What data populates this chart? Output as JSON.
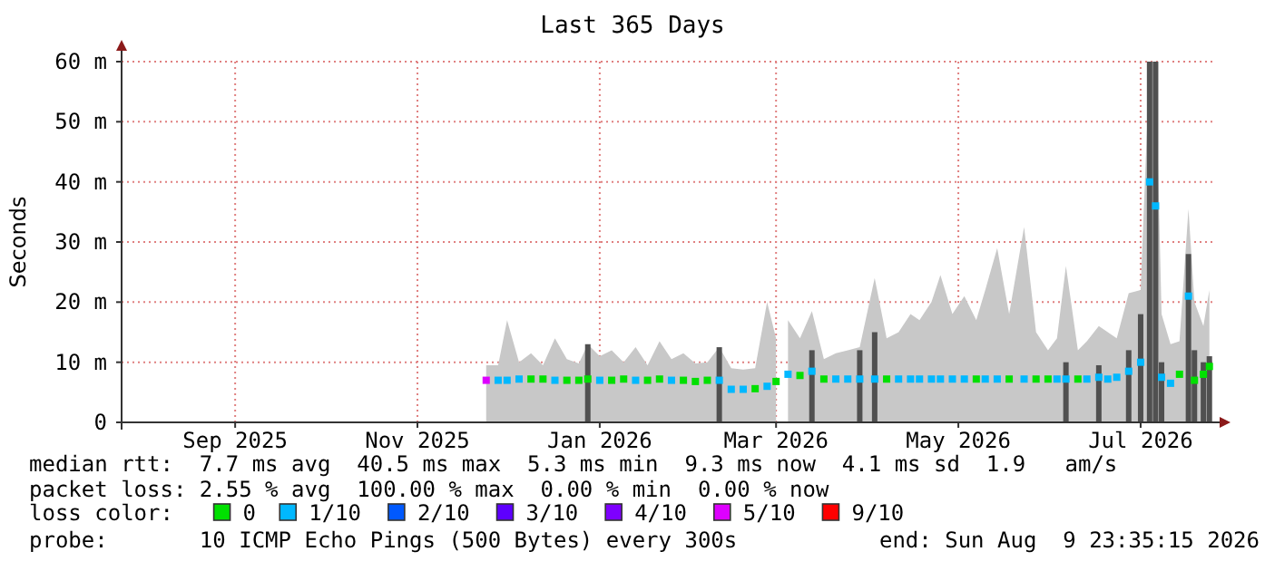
{
  "chart_data": {
    "type": "scatter",
    "title": "Last 365 Days",
    "ylabel": "Seconds",
    "xlim": [
      "2025-08-09",
      "2026-08-09"
    ],
    "xticks": [
      {
        "value": "2025-09-16",
        "label": "Sep 2025"
      },
      {
        "value": "2025-11-16",
        "label": "Nov 2025"
      },
      {
        "value": "2026-01-16",
        "label": "Jan 2026"
      },
      {
        "value": "2026-03-16",
        "label": "Mar 2026"
      },
      {
        "value": "2026-05-16",
        "label": "May 2026"
      },
      {
        "value": "2026-07-16",
        "label": "Jul 2026"
      }
    ],
    "ylim": [
      0,
      60
    ],
    "yticks": [
      0,
      {
        "value": 10,
        "label": "10 m"
      },
      {
        "value": 20,
        "label": "20 m"
      },
      {
        "value": 30,
        "label": "30 m"
      },
      {
        "value": 40,
        "label": "40 m"
      },
      {
        "value": 50,
        "label": "50 m"
      },
      {
        "value": 60,
        "label": "60 m"
      }
    ],
    "grid": true,
    "legend": "bottom",
    "legend_title": "loss color:",
    "x": [
      "2025-12-09",
      "2025-12-13",
      "2025-12-16",
      "2025-12-20",
      "2025-12-24",
      "2025-12-28",
      "2026-01-01",
      "2026-01-05",
      "2026-01-09",
      "2026-01-12",
      "2026-01-16",
      "2026-01-20",
      "2026-01-24",
      "2026-01-28",
      "2026-02-01",
      "2026-02-05",
      "2026-02-09",
      "2026-02-13",
      "2026-02-17",
      "2026-02-21",
      "2026-02-25",
      "2026-03-01",
      "2026-03-05",
      "2026-03-09",
      "2026-03-13",
      "2026-03-16",
      "2026-03-18",
      "2026-03-20",
      "2026-03-24",
      "2026-03-28",
      "2026-04-01",
      "2026-04-05",
      "2026-04-09",
      "2026-04-13",
      "2026-04-18",
      "2026-04-22",
      "2026-04-26",
      "2026-04-30",
      "2026-05-03",
      "2026-05-07",
      "2026-05-10",
      "2026-05-14",
      "2026-05-18",
      "2026-05-22",
      "2026-05-25",
      "2026-05-29",
      "2026-06-02",
      "2026-06-07",
      "2026-06-11",
      "2026-06-15",
      "2026-06-18",
      "2026-06-21",
      "2026-06-25",
      "2026-06-28",
      "2026-07-02",
      "2026-07-05",
      "2026-07-08",
      "2026-07-12",
      "2026-07-16",
      "2026-07-19",
      "2026-07-21",
      "2026-07-23",
      "2026-07-26",
      "2026-07-29",
      "2026-08-01",
      "2026-08-03",
      "2026-08-06",
      "2026-08-08"
    ],
    "series": [
      {
        "type": "area",
        "color": "#c8c8c8",
        "values": [
          9.5,
          9.5,
          17,
          10,
          11.5,
          9.5,
          14,
          10.5,
          9.8,
          13,
          11,
          12,
          10,
          12.5,
          9.5,
          13.5,
          10.5,
          11.5,
          9.8,
          10,
          12.5,
          9,
          8.8,
          9,
          20,
          14,
          null,
          17,
          14,
          18.5,
          10.5,
          11.5,
          12,
          12.5,
          24,
          14,
          15,
          18,
          17,
          20,
          24.5,
          18,
          21,
          17,
          22,
          29,
          18,
          32.5,
          15,
          12,
          14,
          26,
          12,
          13.5,
          16,
          15,
          14,
          21.5,
          22,
          60,
          60,
          18,
          13,
          13.5,
          35.5,
          20,
          16,
          22
        ]
      },
      {
        "type": "bar",
        "color": "#505050",
        "values": [
          null,
          null,
          null,
          null,
          null,
          null,
          null,
          null,
          null,
          13,
          null,
          null,
          null,
          null,
          null,
          null,
          null,
          null,
          null,
          null,
          12.5,
          null,
          null,
          null,
          null,
          null,
          null,
          null,
          null,
          12,
          null,
          null,
          null,
          12,
          15,
          null,
          null,
          null,
          null,
          null,
          null,
          null,
          null,
          null,
          null,
          null,
          null,
          null,
          null,
          null,
          null,
          10,
          null,
          null,
          9.5,
          null,
          null,
          12,
          18,
          60,
          60,
          10,
          null,
          null,
          28,
          12,
          10,
          11
        ]
      },
      {
        "name": "0",
        "color": "#00e000",
        "marker": "square",
        "values": [
          null,
          null,
          null,
          null,
          7.2,
          7.2,
          null,
          7,
          7,
          7.2,
          null,
          7,
          7.2,
          null,
          7,
          7.2,
          null,
          7,
          6.8,
          7,
          null,
          null,
          null,
          5.6,
          null,
          6.8,
          null,
          null,
          7.8,
          null,
          7.2,
          null,
          null,
          null,
          null,
          7.2,
          null,
          null,
          null,
          null,
          null,
          null,
          null,
          7.2,
          null,
          null,
          7.2,
          null,
          7.2,
          7.2,
          null,
          null,
          7.2,
          null,
          null,
          null,
          null,
          null,
          null,
          null,
          null,
          null,
          null,
          8,
          null,
          7,
          8,
          9.3
        ]
      },
      {
        "name": "1/10",
        "color": "#00b8ff",
        "marker": "square",
        "values": [
          null,
          7,
          7,
          7.2,
          null,
          null,
          7,
          null,
          null,
          null,
          7,
          null,
          null,
          7,
          null,
          null,
          7,
          null,
          null,
          null,
          7,
          5.5,
          5.5,
          null,
          6,
          null,
          null,
          8,
          null,
          8.5,
          null,
          7.2,
          7.2,
          7.2,
          7.2,
          null,
          7.2,
          7.2,
          7.2,
          7.2,
          7.2,
          7.2,
          7.2,
          null,
          7.2,
          7.2,
          null,
          7.2,
          null,
          null,
          7.2,
          7.2,
          null,
          7.2,
          7.5,
          7.2,
          7.5,
          8.5,
          10,
          40,
          36,
          7.5,
          6.5,
          null,
          21,
          null,
          null,
          null
        ]
      },
      {
        "name": "2/10",
        "color": "#0059ff",
        "values": [
          null,
          null,
          null,
          null,
          null,
          null,
          null,
          null,
          null,
          null,
          null,
          null,
          null,
          null,
          null,
          null,
          null,
          null,
          null,
          null,
          null,
          null,
          null,
          null,
          null,
          null,
          null,
          null,
          null,
          null,
          null,
          null,
          null,
          null,
          null,
          null,
          null,
          null,
          null,
          null,
          null,
          null,
          null,
          null,
          null,
          null,
          null,
          null,
          null,
          null,
          null,
          null,
          null,
          null,
          null,
          null,
          null,
          null,
          null,
          null,
          null,
          null,
          null,
          null,
          null,
          null,
          null,
          null
        ]
      },
      {
        "name": "3/10",
        "color": "#5e00ff",
        "values": [
          null,
          null,
          null,
          null,
          null,
          null,
          null,
          null,
          null,
          null,
          null,
          null,
          null,
          null,
          null,
          null,
          null,
          null,
          null,
          null,
          null,
          null,
          null,
          null,
          null,
          null,
          null,
          null,
          null,
          null,
          null,
          null,
          null,
          null,
          null,
          null,
          null,
          null,
          null,
          null,
          null,
          null,
          null,
          null,
          null,
          null,
          null,
          null,
          null,
          null,
          null,
          null,
          null,
          null,
          null,
          null,
          null,
          null,
          null,
          null,
          null,
          null,
          null,
          null,
          null,
          null,
          null,
          null
        ]
      },
      {
        "name": "4/10",
        "color": "#7e00ff",
        "values": [
          null,
          null,
          null,
          null,
          null,
          null,
          null,
          null,
          null,
          null,
          null,
          null,
          null,
          null,
          null,
          null,
          null,
          null,
          null,
          null,
          null,
          null,
          null,
          null,
          null,
          null,
          null,
          null,
          null,
          null,
          null,
          null,
          null,
          null,
          null,
          null,
          null,
          null,
          null,
          null,
          null,
          null,
          null,
          null,
          null,
          null,
          null,
          null,
          null,
          null,
          null,
          null,
          null,
          null,
          null,
          null,
          null,
          null,
          null,
          null,
          null,
          null,
          null,
          null,
          null,
          null,
          null,
          null
        ]
      },
      {
        "name": "5/10",
        "color": "#dd00ff",
        "marker": "square",
        "values": [
          7,
          null,
          null,
          null,
          null,
          null,
          null,
          null,
          null,
          null,
          null,
          null,
          null,
          null,
          null,
          null,
          null,
          null,
          null,
          null,
          null,
          null,
          null,
          null,
          null,
          null,
          null,
          null,
          null,
          null,
          null,
          null,
          null,
          null,
          null,
          null,
          null,
          null,
          null,
          null,
          null,
          null,
          null,
          null,
          null,
          null,
          null,
          null,
          null,
          null,
          null,
          null,
          null,
          null,
          null,
          null,
          null,
          null,
          null,
          null,
          null,
          null,
          null,
          null,
          null,
          null,
          null,
          null
        ]
      },
      {
        "name": "9/10",
        "color": "#ff0000",
        "values": [
          null,
          null,
          null,
          null,
          null,
          null,
          null,
          null,
          null,
          null,
          null,
          null,
          null,
          null,
          null,
          null,
          null,
          null,
          null,
          null,
          null,
          null,
          null,
          null,
          null,
          null,
          null,
          null,
          null,
          null,
          null,
          null,
          null,
          null,
          null,
          null,
          null,
          null,
          null,
          null,
          null,
          null,
          null,
          null,
          null,
          null,
          null,
          null,
          null,
          null,
          null,
          null,
          null,
          null,
          null,
          null,
          null,
          null,
          null,
          null,
          null,
          null,
          null,
          null,
          null,
          null,
          null,
          null
        ]
      }
    ],
    "annotations": [
      "median rtt:  7.7 ms avg  40.5 ms max  5.3 ms min  9.3 ms now  4.1 ms sd  1.9   am/s",
      "packet loss: 2.55 % avg  100.00 % max  0.00 % min  0.00 % now",
      "probe:       10 ICMP Echo Pings (500 Bytes) every 300s",
      "end: Sun Aug  9 23:35:15 2026"
    ]
  }
}
